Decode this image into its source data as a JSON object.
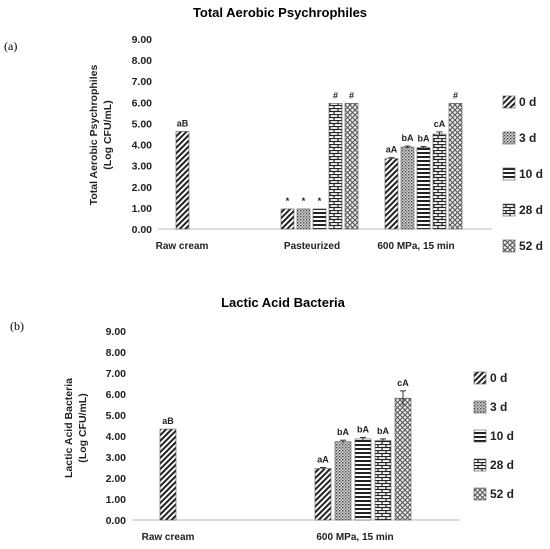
{
  "chart_data": [
    {
      "type": "bar",
      "panel_label": "(a)",
      "title": "Total Aerobic Psychrophiles",
      "ylabel": "Total Aerobic Psychrophiles (Log CFU/mL)",
      "ylabel_lines": [
        "Total Aerobic Psychrophiles",
        "(Log CFU/mL)"
      ],
      "ylim": [
        0,
        9
      ],
      "yticks": [
        "0.00",
        "1.00",
        "2.00",
        "3.00",
        "4.00",
        "5.00",
        "6.00",
        "7.00",
        "8.00",
        "9.00"
      ],
      "grid": false,
      "legend_position": "right",
      "categories": [
        "Raw cream",
        "Pasteurized",
        "600 MPa, 15 min"
      ],
      "series": [
        {
          "name": "0 d",
          "pattern": "diag",
          "values": [
            4.62,
            0.95,
            3.33
          ],
          "errors": [
            0,
            0,
            0.05
          ],
          "labels": [
            "aB",
            "*",
            "aA"
          ]
        },
        {
          "name": "3 d",
          "pattern": "dots",
          "values": [
            null,
            0.95,
            3.88
          ],
          "errors": [
            0,
            0,
            0.05
          ],
          "labels": [
            "",
            "*",
            "bA"
          ]
        },
        {
          "name": "10 d",
          "pattern": "hlines",
          "values": [
            null,
            0.95,
            3.86
          ],
          "errors": [
            0,
            0,
            0.05
          ],
          "labels": [
            "",
            "*",
            "bA"
          ]
        },
        {
          "name": "28 d",
          "pattern": "brick",
          "values": [
            null,
            5.95,
            4.5
          ],
          "errors": [
            0,
            0,
            0.1
          ],
          "labels": [
            "",
            "#",
            "cA"
          ]
        },
        {
          "name": "52 d",
          "pattern": "cross",
          "values": [
            null,
            5.95,
            5.95
          ],
          "errors": [
            0,
            0,
            0
          ],
          "labels": [
            "",
            "#",
            "#"
          ]
        }
      ]
    },
    {
      "type": "bar",
      "panel_label": "(b)",
      "title": "Lactic Acid Bacteria",
      "ylabel": "Lactic Acid Bacteria (Log CFU/mL)",
      "ylabel_lines": [
        "Lactic Acid Bacteria",
        "(Log CFU/mL)"
      ],
      "ylim": [
        0,
        9
      ],
      "yticks": [
        "0.00",
        "1.00",
        "2.00",
        "3.00",
        "4.00",
        "5.00",
        "6.00",
        "7.00",
        "8.00",
        "9.00"
      ],
      "grid": false,
      "legend_position": "right",
      "categories": [
        "Raw cream",
        "600 MPa, 15 min"
      ],
      "series": [
        {
          "name": "0 d",
          "pattern": "diag",
          "values": [
            4.33,
            2.45
          ],
          "errors": [
            0,
            0.05
          ],
          "labels": [
            "aB",
            "aA"
          ]
        },
        {
          "name": "3 d",
          "pattern": "dots",
          "values": [
            null,
            3.73
          ],
          "errors": [
            0,
            0.07
          ],
          "labels": [
            "",
            "bA"
          ]
        },
        {
          "name": "10 d",
          "pattern": "hlines",
          "values": [
            null,
            3.86
          ],
          "errors": [
            0,
            0.07
          ],
          "labels": [
            "",
            "bA"
          ]
        },
        {
          "name": "28 d",
          "pattern": "brick",
          "values": [
            null,
            3.78
          ],
          "errors": [
            0,
            0.08
          ],
          "labels": [
            "",
            "bA"
          ]
        },
        {
          "name": "52 d",
          "pattern": "cross",
          "values": [
            null,
            5.8
          ],
          "errors": [
            0,
            0.35
          ],
          "labels": [
            "",
            "cA"
          ]
        }
      ]
    }
  ]
}
